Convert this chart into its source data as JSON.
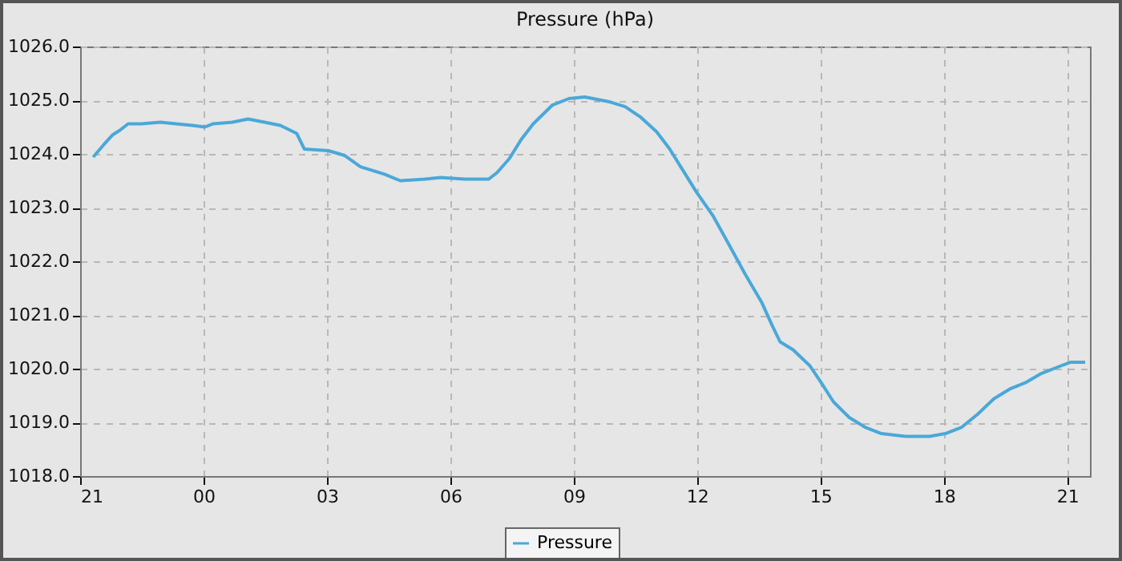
{
  "chart_data": {
    "type": "line",
    "title": "Pressure (hPa)",
    "x": [
      "--01-01T21:19",
      "--01-01T21:35",
      "--01-01T21:47",
      "--01-01T21:58",
      "--01-01T22:10",
      "--01-01T22:29",
      "--01-01T22:57",
      "--01-01T23:20",
      "--01-01T23:44",
      "--01-02T00:02",
      "--01-02T00:14",
      "--01-02T00:42",
      "--01-02T01:05",
      "--01-02T01:29",
      "--01-02T01:52",
      "--01-02T02:16",
      "--01-02T02:27",
      "--01-02T03:02",
      "--01-02T03:26",
      "--01-02T03:49",
      "--01-02T04:24",
      "--01-02T04:47",
      "--01-02T05:23",
      "--01-02T05:46",
      "--01-02T06:21",
      "--01-02T06:56",
      "--01-02T07:08",
      "--01-02T07:26",
      "--01-02T07:43",
      "--01-02T08:01",
      "--01-02T08:29",
      "--01-02T08:53",
      "--01-02T09:16",
      "--01-02T09:52",
      "--01-02T10:15",
      "--01-02T10:38",
      "--01-02T11:01",
      "--01-02T11:20",
      "--01-02T11:37",
      "--01-02T11:59",
      "--01-02T12:23",
      "--01-02T12:46",
      "--01-02T13:10",
      "--01-02T13:34",
      "--01-02T13:50",
      "--01-02T14:01",
      "--01-02T14:20",
      "--01-02T14:44",
      "--01-02T15:00",
      "--01-02T15:19",
      "--01-02T15:42",
      "--01-02T16:05",
      "--01-02T16:29",
      "--01-02T17:04",
      "--01-02T17:39",
      "--01-02T18:02",
      "--01-02T18:26",
      "--01-02T18:49",
      "--01-02T19:13",
      "--01-02T19:36",
      "--01-02T19:59",
      "--01-02T20:22",
      "--01-02T20:46",
      "--01-02T21:05",
      "--01-02T21:26"
    ],
    "series": [
      {
        "name": "Pressure",
        "color": "#4aa8d8",
        "values": [
          1023.94,
          1024.18,
          1024.35,
          1024.44,
          1024.56,
          1024.56,
          1024.59,
          1024.56,
          1024.53,
          1024.5,
          1024.56,
          1024.59,
          1024.65,
          1024.59,
          1024.53,
          1024.38,
          1024.09,
          1024.06,
          1023.97,
          1023.76,
          1023.62,
          1023.5,
          1023.53,
          1023.56,
          1023.53,
          1023.53,
          1023.65,
          1023.91,
          1024.26,
          1024.56,
          1024.91,
          1025.03,
          1025.06,
          1024.97,
          1024.88,
          1024.68,
          1024.41,
          1024.09,
          1023.74,
          1023.29,
          1022.85,
          1022.32,
          1021.76,
          1021.24,
          1020.79,
          1020.5,
          1020.35,
          1020.06,
          1019.76,
          1019.38,
          1019.09,
          1018.91,
          1018.79,
          1018.74,
          1018.74,
          1018.79,
          1018.91,
          1019.15,
          1019.44,
          1019.62,
          1019.74,
          1019.91,
          1020.03,
          1020.12,
          1020.12
        ]
      }
    ],
    "xlim": [
      "--01-01T21:00",
      "--01-02T21:33"
    ],
    "xticks": [
      {
        "value": "--01-01T21:00",
        "label": "21"
      },
      {
        "value": "--01-02T00:00",
        "label": "00"
      },
      {
        "value": "--01-02T03:00",
        "label": "03"
      },
      {
        "value": "--01-02T06:00",
        "label": "06"
      },
      {
        "value": "--01-02T09:00",
        "label": "09"
      },
      {
        "value": "--01-02T12:00",
        "label": "12"
      },
      {
        "value": "--01-02T15:00",
        "label": "15"
      },
      {
        "value": "--01-02T18:00",
        "label": "18"
      },
      {
        "value": "--01-02T21:00",
        "label": "21"
      }
    ],
    "ylim": [
      1018,
      1026
    ],
    "yticks": [
      {
        "value": 1018,
        "label": "1018.0"
      },
      {
        "value": 1019,
        "label": "1019.0"
      },
      {
        "value": 1020,
        "label": "1020.0"
      },
      {
        "value": 1021,
        "label": "1021.0"
      },
      {
        "value": 1022,
        "label": "1022.0"
      },
      {
        "value": 1023,
        "label": "1023.0"
      },
      {
        "value": 1024,
        "label": "1024.0"
      },
      {
        "value": 1025,
        "label": "1025.0"
      },
      {
        "value": 1026,
        "label": "1026.0"
      }
    ],
    "grid": true,
    "legend": "bottom"
  }
}
